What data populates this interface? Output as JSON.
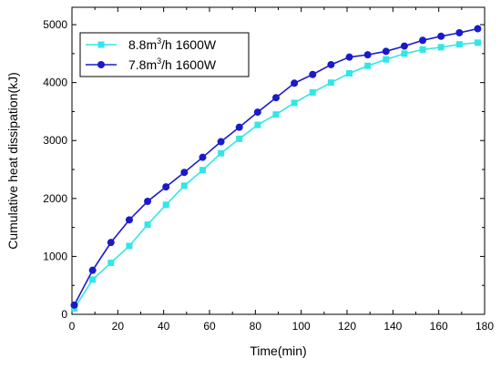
{
  "chart_data": {
    "type": "line",
    "xlabel": "Time(min)",
    "ylabel": "Cumulative heat dissipation(kJ)",
    "xlim": [
      0,
      180
    ],
    "ylim": [
      0,
      5300
    ],
    "xticks": [
      0,
      20,
      40,
      60,
      80,
      100,
      120,
      140,
      160,
      180
    ],
    "yticks": [
      0,
      1000,
      2000,
      3000,
      4000,
      5000
    ],
    "grid": false,
    "legend_position": "top-left",
    "series": [
      {
        "name": "8.8m3/h 1600W",
        "legend_label": {
          "base": "8.8m",
          "sup": "3",
          "rest": "/h  1600W"
        },
        "color": "#33e6e6",
        "marker": "square",
        "x": [
          1,
          9,
          17,
          25,
          33,
          41,
          49,
          57,
          65,
          73,
          81,
          89,
          97,
          105,
          113,
          121,
          129,
          137,
          145,
          153,
          161,
          169,
          177
        ],
        "values": [
          100,
          600,
          890,
          1180,
          1550,
          1890,
          2220,
          2490,
          2780,
          3030,
          3270,
          3450,
          3650,
          3830,
          4000,
          4160,
          4290,
          4400,
          4500,
          4570,
          4610,
          4660,
          4690
        ]
      },
      {
        "name": "7.8m3/h 1600W",
        "legend_label": {
          "base": "7.8m",
          "sup": "3",
          "rest": "/h  1600W"
        },
        "color": "#1a1acc",
        "marker": "circle",
        "x": [
          1,
          9,
          17,
          25,
          33,
          41,
          49,
          57,
          65,
          73,
          81,
          89,
          97,
          105,
          113,
          121,
          129,
          137,
          145,
          153,
          161,
          169,
          177
        ],
        "values": [
          160,
          760,
          1240,
          1630,
          1950,
          2200,
          2450,
          2710,
          2980,
          3230,
          3490,
          3740,
          3990,
          4140,
          4310,
          4440,
          4480,
          4540,
          4630,
          4730,
          4800,
          4860,
          4930
        ]
      }
    ]
  }
}
